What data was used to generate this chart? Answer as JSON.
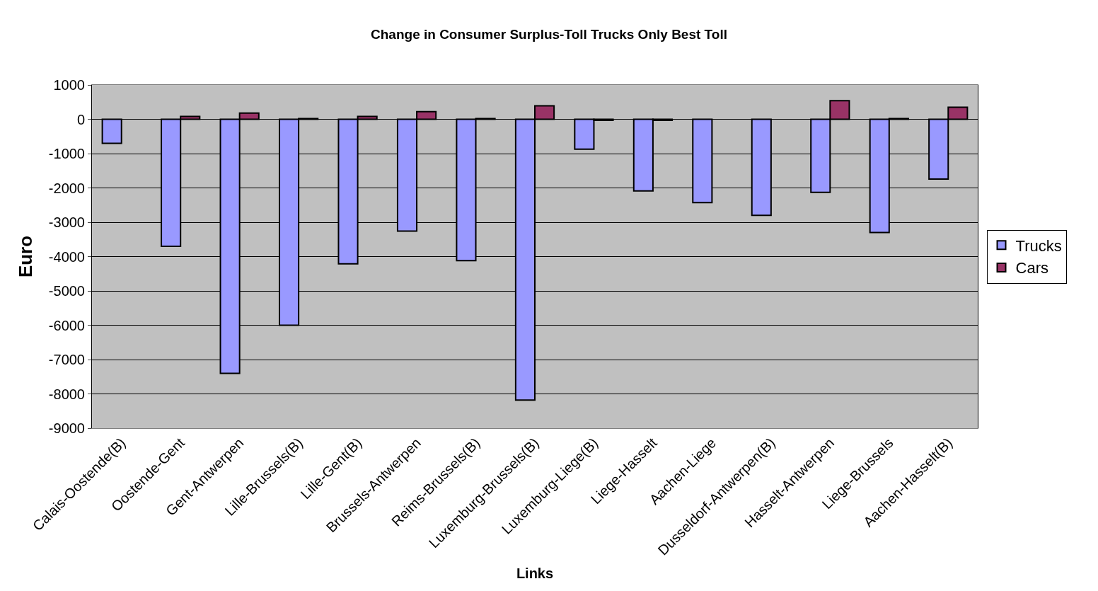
{
  "chart_data": {
    "type": "bar",
    "title": "Change in Consumer Surplus-Toll Trucks Only Best Toll",
    "xlabel": "Links",
    "ylabel": "Euro",
    "categories": [
      "Calais-Oostende(B)",
      "Oostende-Gent",
      "Gent-Antwerpen",
      "Lille-Brussels(B)",
      "Lille-Gent(B)",
      "Brussels-Antwerpen",
      "Reims-Brussels(B)",
      "Luxemburg-Brussels(B)",
      "Luxemburg-Liege(B)",
      "Liege-Hasselt",
      "Aachen-Liege",
      "Dusseldorf-Antwerpen(B)",
      "Hasselt-Antwerpen",
      "Liege-Brussels",
      "Aachen-Hasselt(B)"
    ],
    "series": [
      {
        "name": "Trucks",
        "color": "#9999ff",
        "values": [
          -700,
          -3700,
          -7400,
          -6000,
          -4210,
          -3260,
          -4120,
          -8180,
          -870,
          -2090,
          -2430,
          -2800,
          -2130,
          -3300,
          -1740
        ]
      },
      {
        "name": "Cars",
        "color": "#993366",
        "values": [
          null,
          80,
          180,
          20,
          80,
          220,
          20,
          390,
          -30,
          -30,
          null,
          null,
          540,
          20,
          350
        ]
      }
    ],
    "ylim": [
      -9000,
      1000
    ],
    "yticks": [
      -9000,
      -8000,
      -7000,
      -6000,
      -5000,
      -4000,
      -3000,
      -2000,
      -1000,
      0,
      1000
    ],
    "grid": "y",
    "legend": "right"
  }
}
